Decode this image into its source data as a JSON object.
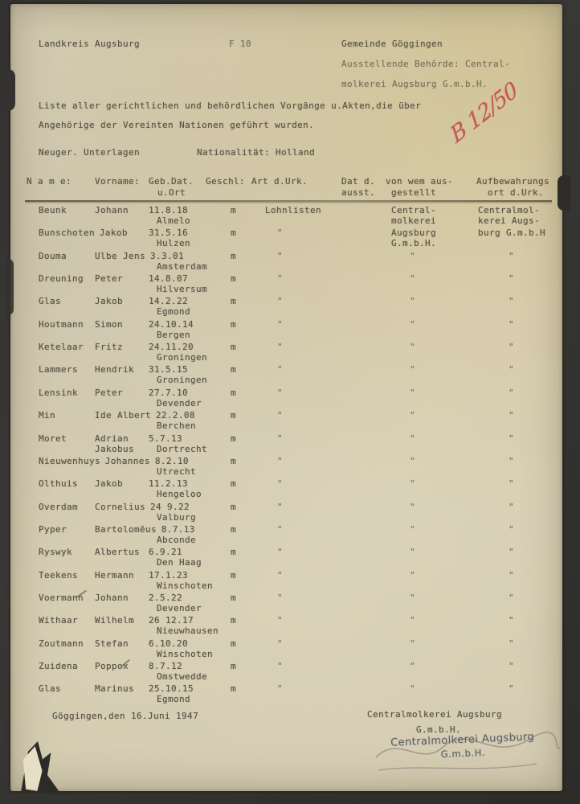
{
  "header": {
    "district": "Landkreis Augsburg",
    "doc_number": "F 10",
    "municipality": "Gemeinde Göggingen",
    "authority_line1": "Ausstellende Behörde: Central-",
    "authority_line2": "molkerei Augsburg G.m.b.H.",
    "title_line1": "Liste aller gerichtlichen und behördlichen Vorgänge u.Akten,die über",
    "title_line2": "Angehörige der Vereinten Nationen geführt wurden.",
    "records_label": "Neuger. Unterlagen",
    "nationality_label": "Nationalität: Holland",
    "red_annotation": "B 12/50"
  },
  "table": {
    "header_line1": {
      "name": "N a m e:",
      "vorname": "Vorname:",
      "geb_dat": "Geb.Dat.",
      "geschl": "Geschl:",
      "art": "Art d.Urk.",
      "dat": "Dat d.",
      "von_wem": "von wem aus-",
      "aufbewahrung": "Aufbewahrungs"
    },
    "header_line2": {
      "u_ort": "u.Ort",
      "ausst": "ausst.",
      "gestellt": "gestellt",
      "ort_urk": "ort d.Urk."
    },
    "rows": [
      {
        "name": "Beunk",
        "vorname": "Johann",
        "geb": "11.8.18",
        "ort": "Almelo",
        "geschl": "m",
        "art": "Lohnlisten",
        "issuer": [
          "Central-",
          "molkerei"
        ],
        "store": [
          "Centralmol-",
          "kerei Augs-"
        ]
      },
      {
        "name": "Bunschoten",
        "vorname": "Jakob",
        "geb": "31.5.16",
        "ort": "Hulzen",
        "geschl": "m",
        "art": "\"",
        "issuer": [
          "Augsburg",
          "G.m.b.H."
        ],
        "store": [
          "burg G.m.b.H"
        ]
      },
      {
        "name": "Douma",
        "vorname": "Ulbe Jens",
        "geb": "3.3.01",
        "ort": "Amsterdam",
        "geschl": "m",
        "art": "\"",
        "issuer": "\"",
        "store": "\""
      },
      {
        "name": "Dreuning",
        "vorname": "Peter",
        "geb": "14.8.07",
        "ort": "Hilversum",
        "geschl": "m",
        "art": "\"",
        "issuer": "\"",
        "store": "\""
      },
      {
        "name": "Glas",
        "vorname": "Jakob",
        "geb": "14.2.22",
        "ort": "Egmond",
        "geschl": "m",
        "art": "\"",
        "issuer": "\"",
        "store": "\""
      },
      {
        "name": "Houtmann",
        "vorname": "Simon",
        "geb": "24.10.14",
        "ort": "Bergen",
        "geschl": "m",
        "art": "\"",
        "issuer": "\"",
        "store": "\""
      },
      {
        "name": "Ketelaar",
        "vorname": "Fritz",
        "geb": "24.11.20",
        "ort": "Groningen",
        "geschl": "m",
        "art": "\"",
        "issuer": "\"",
        "store": "\""
      },
      {
        "name": "Lammers",
        "vorname": "Hendrik",
        "geb": "31.5.15",
        "ort": "Groningen",
        "geschl": "m",
        "art": "\"",
        "issuer": "\"",
        "store": "\""
      },
      {
        "name": "Lensink",
        "vorname": "Peter",
        "geb": "27.7.10",
        "ort": "Devender",
        "geschl": "m",
        "art": "\"",
        "issuer": "\"",
        "store": "\""
      },
      {
        "name": "Min",
        "vorname": "Ide Albert",
        "geb": "22.2.08",
        "ort": "Berchen",
        "geschl": "m",
        "art": "\"",
        "issuer": "\"",
        "store": "\""
      },
      {
        "name": "Moret",
        "vorname": [
          "Adrian",
          "Jakobus"
        ],
        "geb": "5.7.13",
        "ort": "Dortrecht",
        "geschl": "m",
        "art": "\"",
        "issuer": "\"",
        "store": "\""
      },
      {
        "name": "Nieuwenhuys",
        "vorname": "Johannes",
        "geb": "8.2.10",
        "ort": "Utrecht",
        "geschl": "m",
        "art": "\"",
        "issuer": "\"",
        "store": "\""
      },
      {
        "name": "Olthuis",
        "vorname": "Jakob",
        "geb": "11.2.13",
        "ort": "Hengeloo",
        "geschl": "m",
        "art": "\"",
        "issuer": "\"",
        "store": "\""
      },
      {
        "name": "Overdam",
        "vorname": "Cornelius",
        "geb": "24 9.22",
        "ort": "Valburg",
        "geschl": "m",
        "art": "\"",
        "issuer": "\"",
        "store": "\""
      },
      {
        "name": "Pyper",
        "vorname": "Bartolomëus",
        "geb": "8.7.13",
        "ort": "Abconde",
        "geschl": "m",
        "art": "\"",
        "issuer": "\"",
        "store": "\""
      },
      {
        "name": "Ryswyk",
        "vorname": "Albertus",
        "geb": "6.9.21",
        "ort": "Den Haag",
        "geschl": "m",
        "art": "\"",
        "issuer": "\"",
        "store": "\""
      },
      {
        "name": "Teekens",
        "vorname": "Hermann",
        "geb": "17.1.23",
        "ort": "Winschoten",
        "geschl": "m",
        "art": "\"",
        "issuer": "\"",
        "store": "\""
      },
      {
        "name": "Voermann",
        "vorname": "Johann",
        "geb": "2.5.22",
        "ort": "Devender",
        "geschl": "m",
        "art": "\"",
        "issuer": "\"",
        "store": "\""
      },
      {
        "name": "Withaar",
        "vorname": "Wilhelm",
        "geb": "26 12.17",
        "ort": "Nieuwhausen",
        "geschl": "m",
        "art": "\"",
        "issuer": "\"",
        "store": "\""
      },
      {
        "name": "Zoutmann",
        "vorname": "Stefan",
        "geb": "6.10.20",
        "ort": "Winschoten",
        "geschl": "m",
        "art": "\"",
        "issuer": "\"",
        "store": "\""
      },
      {
        "name": "Zuidena",
        "vorname": "Poppox",
        "geb": "8.7.12",
        "ort": "Omstwedde",
        "geschl": "m",
        "art": "\"",
        "issuer": "\"",
        "store": "\""
      },
      {
        "name": "Glas",
        "vorname": "Marinus",
        "geb": "25.10.15",
        "ort": "Egmond",
        "geschl": "m",
        "art": "\"",
        "issuer": "\"",
        "store": "\""
      }
    ]
  },
  "footer": {
    "date_line": "Göggingen,den 16.Juni 1947",
    "company_line1": "Centralmolkerei Augsburg",
    "company_line2": "G.m.b.H.",
    "stamp_line1": "Centralmolkerei Augsburg",
    "stamp_line2": "G.m.b.H."
  }
}
